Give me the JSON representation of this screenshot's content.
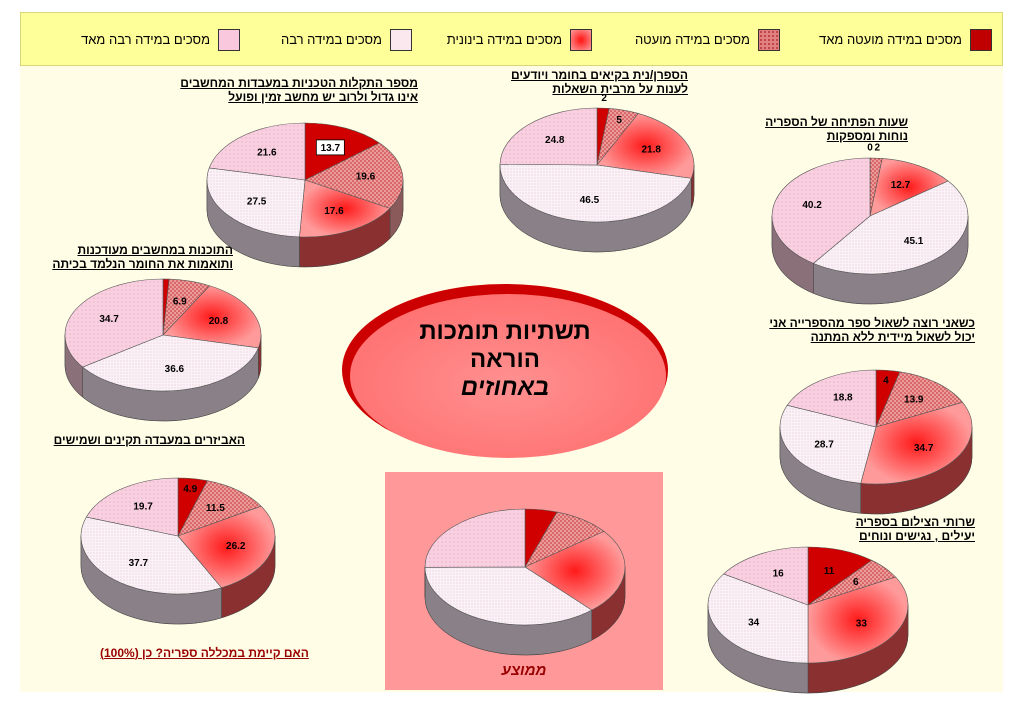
{
  "slide": {
    "center_title_line1": "תשתיות תומכות",
    "center_title_line2": "הוראה",
    "center_title_line3": "באחוזים",
    "average_label": "ממוצע",
    "footer_question": "האם קיימת במכללה ספריה?    כן (100%)"
  },
  "legend": {
    "items": [
      {
        "label": "מסכים במידה מועטה מאד",
        "color": "#c00000",
        "pattern": "solid"
      },
      {
        "label": "מסכים במידה מועטה",
        "color": "#e08080",
        "pattern": "dots"
      },
      {
        "label": "מסכים במידה בינונית",
        "color": "#ff4d4d",
        "pattern": "radial"
      },
      {
        "label": "מסכים במידה רבה",
        "color": "#fbe8ee",
        "pattern": "fine-dots"
      },
      {
        "label": "מסכים במידה רבה מאד",
        "color": "#f9c8dc",
        "pattern": "light-dots"
      }
    ]
  },
  "colors": {
    "very_low": "#d00000",
    "low": "#e89090",
    "medium": "#ff4040",
    "high": "#f7f0f4",
    "very_high": "#f8d2e2",
    "side": "#8c7a80",
    "avg_box": "#ff9999"
  },
  "chart_data": [
    {
      "type": "pie",
      "id": "tech-failures",
      "title_line1": "מספר התקלות הטכניות במעבדות המחשבים",
      "title_line2": "אינו גדול ולרוב יש מחשב זמין ופועל",
      "categories": [
        "מסכים במידה מועטה מאד",
        "מסכים במידה מועטה",
        "מסכים במידה בינונית",
        "מסכים במידה רבה",
        "מסכים במידה רבה מאד"
      ],
      "values": [
        13.7,
        19.6,
        17.6,
        27.5,
        21.6
      ],
      "labels": [
        "13.7",
        "19.6",
        "17.6",
        "27.5",
        "21.6"
      ]
    },
    {
      "type": "pie",
      "id": "librarian-knowledge",
      "title_line1": "הספרן/נית בקיאים בחומר ויודעים",
      "title_line2": "לענות על מרבית השאלות",
      "categories": [
        "מסכים במידה מועטה מאד",
        "מסכים במידה מועטה",
        "מסכים במידה בינונית",
        "מסכים במידה רבה",
        "מסכים במידה רבה מאד"
      ],
      "values": [
        2,
        5,
        21.8,
        46.5,
        24.8
      ],
      "labels": [
        "2",
        "5",
        "21.8",
        "46.5",
        "24.8"
      ]
    },
    {
      "type": "pie",
      "id": "library-hours",
      "title_line1": "שעות הפתיחה של הספריה",
      "title_line2": "נוחות ומספקות",
      "categories": [
        "מסכים במידה מועטה מאד",
        "מסכים במידה מועטה",
        "מסכים במידה בינונית",
        "מסכים במידה רבה",
        "מסכים במידה רבה מאד"
      ],
      "values": [
        0,
        2,
        12.7,
        45.1,
        40.2
      ],
      "labels": [
        "0",
        "2",
        "12.7",
        "45.1",
        "40.2"
      ]
    },
    {
      "type": "pie",
      "id": "software-updated",
      "title_line1": "התוכנות במחשבים מעודכנות",
      "title_line2": "ותואמות את החומר הנלמד בכיתה",
      "categories": [
        "מסכים במידה מועטה מאד",
        "מסכים במידה מועטה",
        "מסכים במידה בינונית",
        "מסכים במידה רבה",
        "מסכים במידה רבה מאד"
      ],
      "values": [
        1,
        6.9,
        20.8,
        36.6,
        34.7
      ],
      "labels": [
        "",
        "6.9",
        "20.8",
        "36.6",
        "34.7"
      ]
    },
    {
      "type": "pie",
      "id": "library-book-availability",
      "title_line1": "כשאני רוצה לשאול ספר מהספרייה אני",
      "title_line2": "יכול לשאול מיידית ללא המתנה",
      "categories": [
        "מסכים במידה מועטה מאד",
        "מסכים במידה מועטה",
        "מסכים במידה בינונית",
        "מסכים במידה רבה",
        "מסכים במידה רבה מאד"
      ],
      "values": [
        4,
        13.9,
        34.7,
        28.7,
        18.8
      ],
      "labels": [
        "4",
        "13.9",
        "34.7",
        "28.7",
        "18.8"
      ]
    },
    {
      "type": "pie",
      "id": "lab-equipment",
      "title_line1": "האביזרים במעבדה תקינים ושמישים",
      "title_line2": "",
      "categories": [
        "מסכים במידה מועטה מאד",
        "מסכים במידה מועטה",
        "מסכים במידה בינונית",
        "מסכים במידה רבה",
        "מסכים במידה רבה מאד"
      ],
      "values": [
        4.9,
        11.5,
        26.2,
        37.7,
        19.7
      ],
      "labels": [
        "4.9",
        "11.5",
        "26.2",
        "37.7",
        "19.7"
      ]
    },
    {
      "type": "pie",
      "id": "copy-services",
      "title_line1": "שרותי הצילום בספריה",
      "title_line2": "יעילים , נגישים ונוחים",
      "categories": [
        "מסכים במידה מועטה מאד",
        "מסכים במידה מועטה",
        "מסכים במידה בינונית",
        "מסכים במידה רבה",
        "מסכים במידה רבה מאד"
      ],
      "values": [
        11,
        6,
        33,
        34,
        16
      ],
      "labels": [
        "11",
        "6",
        "33",
        "34",
        "16"
      ]
    },
    {
      "type": "pie",
      "id": "average",
      "title_line1": "ממוצע",
      "title_line2": "",
      "categories": [
        "מסכים במידה מועטה מאד",
        "מסכים במידה מועטה",
        "מסכים במידה בינונית",
        "מסכים במידה רבה",
        "מסכים במידה רבה מאד"
      ],
      "values": [
        5.2,
        9.3,
        23.9,
        36.6,
        25.1
      ],
      "labels": [
        "",
        "",
        "",
        "",
        ""
      ]
    }
  ]
}
